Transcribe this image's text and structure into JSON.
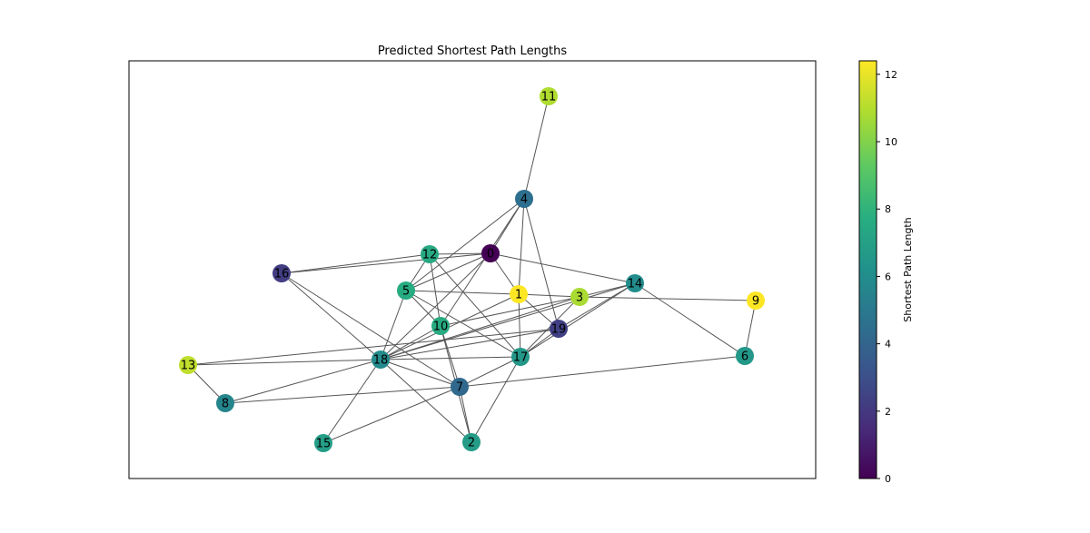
{
  "title": "Predicted Shortest Path Lengths",
  "colorbar": {
    "label": "Shortest Path Length",
    "min": 0,
    "max": 12.4,
    "ticks": [
      0,
      2,
      4,
      6,
      8,
      10,
      12
    ],
    "colormap": "viridis"
  },
  "nodes": [
    {
      "id": "0",
      "value": 0.0
    },
    {
      "id": "1",
      "value": 12.4
    },
    {
      "id": "2",
      "value": 6.8
    },
    {
      "id": "3",
      "value": 10.8
    },
    {
      "id": "4",
      "value": 4.5
    },
    {
      "id": "5",
      "value": 7.6
    },
    {
      "id": "6",
      "value": 6.6
    },
    {
      "id": "7",
      "value": 4.2
    },
    {
      "id": "8",
      "value": 5.6
    },
    {
      "id": "9",
      "value": 12.4
    },
    {
      "id": "10",
      "value": 7.6
    },
    {
      "id": "11",
      "value": 10.9
    },
    {
      "id": "12",
      "value": 7.5
    },
    {
      "id": "13",
      "value": 11.2
    },
    {
      "id": "14",
      "value": 6.0
    },
    {
      "id": "15",
      "value": 6.9
    },
    {
      "id": "16",
      "value": 2.2
    },
    {
      "id": "17",
      "value": 6.6
    },
    {
      "id": "18",
      "value": 5.9
    },
    {
      "id": "19",
      "value": 2.3
    }
  ],
  "edges": [
    [
      "11",
      "4"
    ],
    [
      "4",
      "0"
    ],
    [
      "4",
      "1"
    ],
    [
      "4",
      "19"
    ],
    [
      "4",
      "5"
    ],
    [
      "4",
      "10"
    ],
    [
      "12",
      "16"
    ],
    [
      "12",
      "0"
    ],
    [
      "12",
      "5"
    ],
    [
      "12",
      "10"
    ],
    [
      "12",
      "17"
    ],
    [
      "0",
      "16"
    ],
    [
      "0",
      "5"
    ],
    [
      "0",
      "14"
    ],
    [
      "0",
      "1"
    ],
    [
      "0",
      "18"
    ],
    [
      "16",
      "18"
    ],
    [
      "16",
      "7"
    ],
    [
      "5",
      "1"
    ],
    [
      "5",
      "10"
    ],
    [
      "5",
      "17"
    ],
    [
      "5",
      "18"
    ],
    [
      "1",
      "3"
    ],
    [
      "1",
      "19"
    ],
    [
      "1",
      "17"
    ],
    [
      "1",
      "18"
    ],
    [
      "3",
      "9"
    ],
    [
      "3",
      "14"
    ],
    [
      "3",
      "18"
    ],
    [
      "3",
      "17"
    ],
    [
      "3",
      "10"
    ],
    [
      "14",
      "6"
    ],
    [
      "14",
      "18"
    ],
    [
      "14",
      "17"
    ],
    [
      "14",
      "19"
    ],
    [
      "9",
      "6"
    ],
    [
      "10",
      "7"
    ],
    [
      "10",
      "2"
    ],
    [
      "10",
      "18"
    ],
    [
      "19",
      "13"
    ],
    [
      "19",
      "17"
    ],
    [
      "19",
      "18"
    ],
    [
      "13",
      "18"
    ],
    [
      "13",
      "8"
    ],
    [
      "18",
      "17"
    ],
    [
      "18",
      "15"
    ],
    [
      "18",
      "7"
    ],
    [
      "18",
      "2"
    ],
    [
      "18",
      "8"
    ],
    [
      "17",
      "7"
    ],
    [
      "17",
      "2"
    ],
    [
      "7",
      "6"
    ],
    [
      "7",
      "8"
    ],
    [
      "7",
      "15"
    ],
    [
      "7",
      "2"
    ]
  ]
}
